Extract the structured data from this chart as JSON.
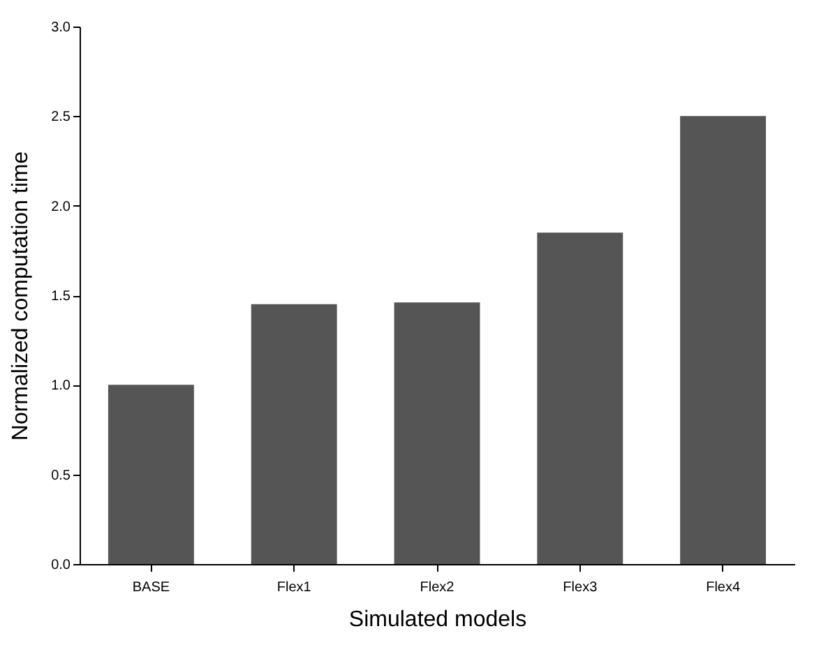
{
  "chart_data": {
    "type": "bar",
    "xlabel": "Simulated models",
    "ylabel": "Normalized computation time",
    "categories": [
      "BASE",
      "Flex1",
      "Flex2",
      "Flex3",
      "Flex4"
    ],
    "values": [
      1.0,
      1.45,
      1.46,
      1.85,
      2.5
    ],
    "color": "#555555",
    "ylim": [
      0,
      3.0
    ],
    "yticks": [
      {
        "value": 0,
        "label": "0.0"
      },
      {
        "value": 0.5,
        "label": "0.5"
      },
      {
        "value": 1,
        "label": "1.0"
      },
      {
        "value": 1.5,
        "label": "1.5"
      },
      {
        "value": 2,
        "label": "2.0"
      },
      {
        "value": 2.5,
        "label": "2.5"
      },
      {
        "value": 3,
        "label": "3.0"
      }
    ],
    "grid": false
  }
}
